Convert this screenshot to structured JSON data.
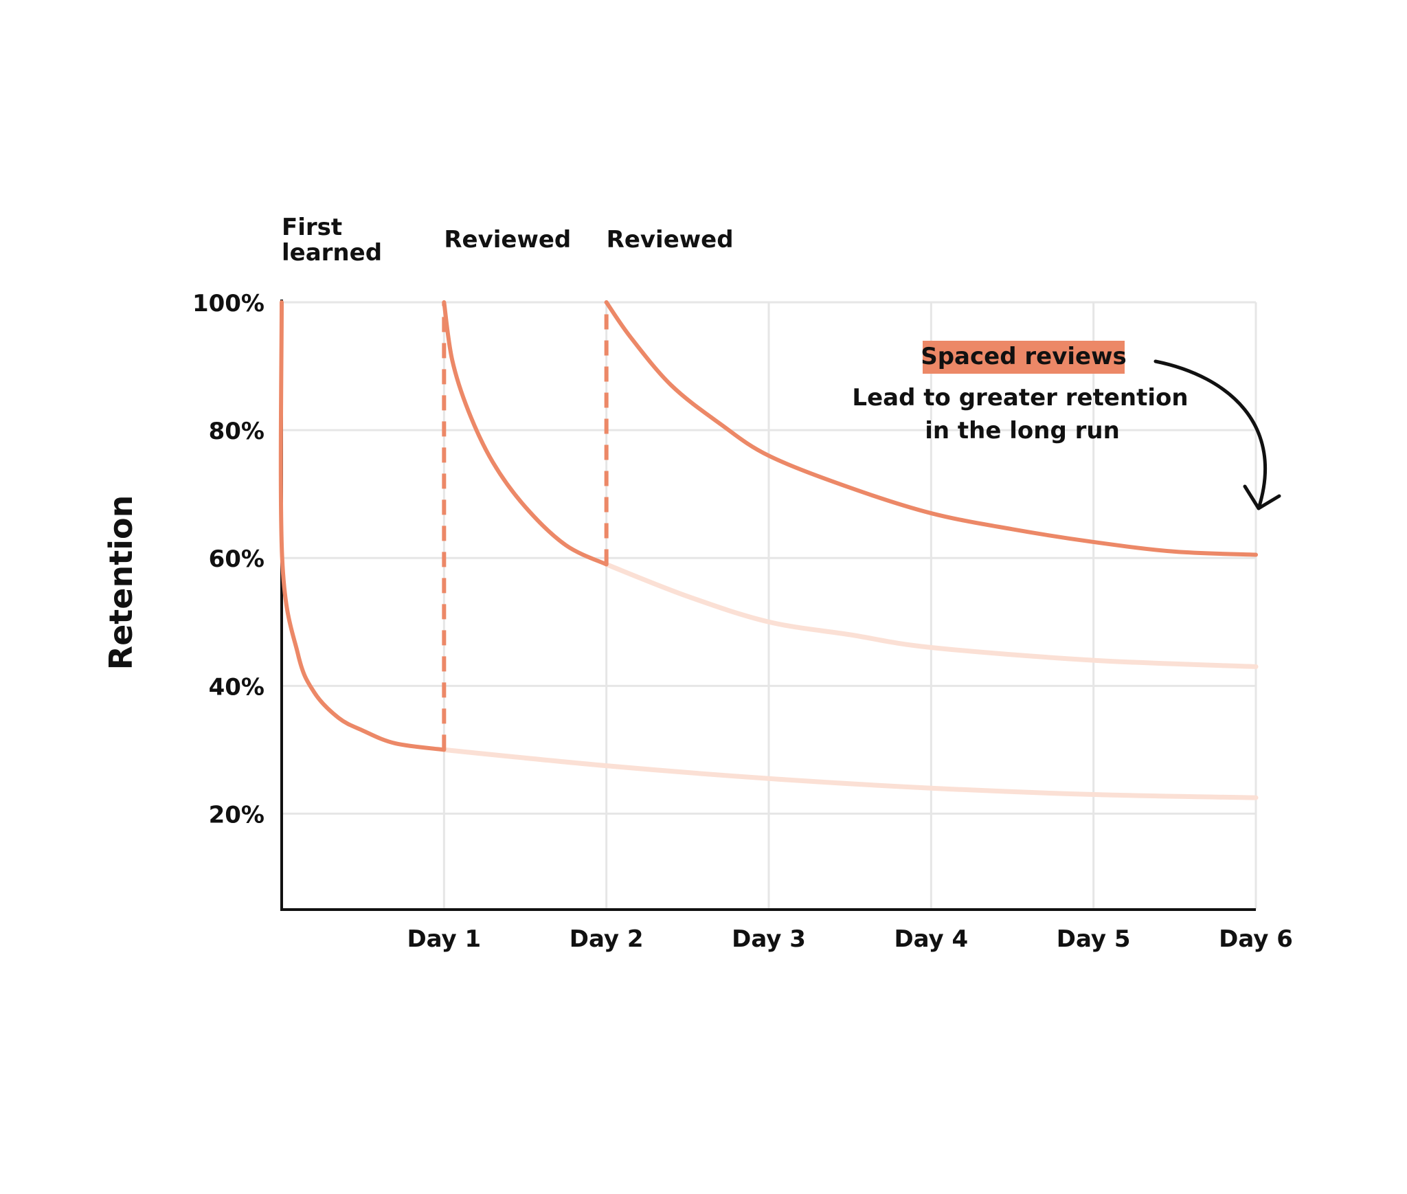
{
  "chart_data": {
    "type": "line",
    "title": "",
    "xlabel": "",
    "ylabel": "Retention",
    "x_ticks": [
      "Day 1",
      "Day 2",
      "Day 3",
      "Day 4",
      "Day 5",
      "Day 6"
    ],
    "y_ticks": [
      "100%",
      "80%",
      "60%",
      "40%",
      "20%"
    ],
    "xlim": [
      0,
      6
    ],
    "ylim": [
      5,
      100
    ],
    "grid": true,
    "event_labels": [
      {
        "x": 0,
        "text": "First\nlearned"
      },
      {
        "x": 1,
        "text": "Reviewed"
      },
      {
        "x": 2,
        "text": "Reviewed"
      }
    ],
    "series": [
      {
        "role": "after-first-learning",
        "points": [
          [
            0,
            100
          ],
          [
            0.003,
            60
          ],
          [
            0.1,
            45
          ],
          [
            0.2,
            39
          ],
          [
            0.35,
            35
          ],
          [
            0.5,
            33
          ],
          [
            0.7,
            31
          ],
          [
            1,
            30
          ]
        ]
      },
      {
        "role": "after-first-learning-projected",
        "points": [
          [
            1,
            30
          ],
          [
            2,
            27.5
          ],
          [
            3,
            25.5
          ],
          [
            4,
            24
          ],
          [
            5,
            23
          ],
          [
            6,
            22.5
          ]
        ]
      },
      {
        "role": "after-review-1",
        "points": [
          [
            1,
            100
          ],
          [
            1.05,
            91
          ],
          [
            1.15,
            83
          ],
          [
            1.3,
            75
          ],
          [
            1.5,
            68
          ],
          [
            1.75,
            62
          ],
          [
            2,
            59
          ]
        ]
      },
      {
        "role": "after-review-1-projected",
        "points": [
          [
            2,
            59
          ],
          [
            2.5,
            54
          ],
          [
            3,
            50
          ],
          [
            3.5,
            48
          ],
          [
            4,
            46
          ],
          [
            5,
            44
          ],
          [
            6,
            43
          ]
        ]
      },
      {
        "role": "after-review-2",
        "points": [
          [
            2,
            100
          ],
          [
            2.15,
            94.5
          ],
          [
            2.4,
            87
          ],
          [
            2.7,
            81
          ],
          [
            3,
            76
          ],
          [
            3.5,
            71
          ],
          [
            4,
            67
          ],
          [
            4.5,
            64.5
          ],
          [
            5,
            62.5
          ],
          [
            5.5,
            61
          ],
          [
            6,
            60.5
          ]
        ]
      }
    ],
    "review_markers": [
      1,
      2
    ],
    "colors": {
      "curve": "#ec8867",
      "projected": "#fbe0d5",
      "grid": "#e6e6e6",
      "axis": "#111111",
      "arrow": "#111111"
    },
    "annotation": {
      "badge": "Spaced reviews",
      "lines": [
        "Lead to greater retention",
        "in the long run"
      ]
    }
  }
}
